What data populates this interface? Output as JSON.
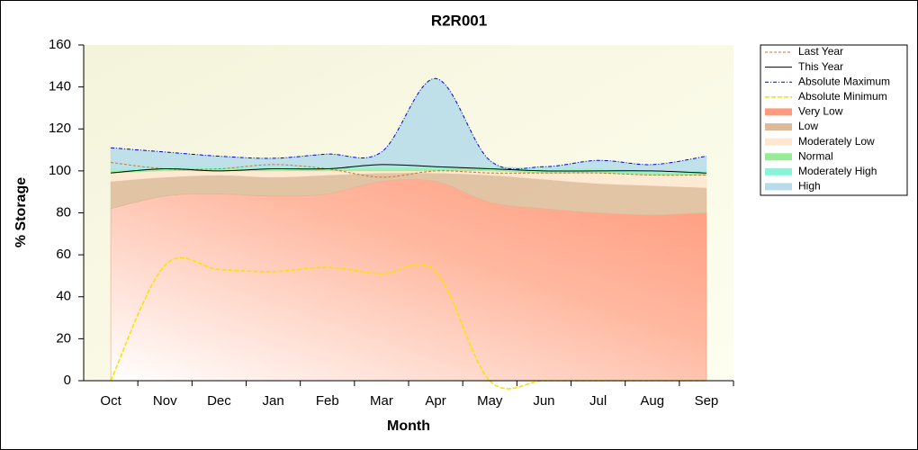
{
  "chart_data": {
    "type": "area",
    "title": "R2R001",
    "x_label": "Month",
    "y_label": "% Storage",
    "categories": [
      "Oct",
      "Nov",
      "Dec",
      "Jan",
      "Feb",
      "Mar",
      "Apr",
      "May",
      "Jun",
      "Jul",
      "Aug",
      "Sep"
    ],
    "ylim": [
      0,
      160
    ],
    "yticks": [
      0,
      20,
      40,
      60,
      80,
      100,
      120,
      140,
      160
    ],
    "legend": "right",
    "series": [
      {
        "name": "Last Year",
        "kind": "line",
        "dash": "3,2",
        "color": "#c07838",
        "values": [
          104,
          101,
          101,
          103,
          101,
          97,
          100,
          99,
          99,
          99,
          98,
          98
        ]
      },
      {
        "name": "This Year",
        "kind": "line",
        "color": "#000000",
        "values": [
          99,
          101,
          100,
          101,
          101,
          103,
          102,
          101,
          100,
          100,
          100,
          99
        ]
      },
      {
        "name": "Absolute Maximum",
        "kind": "line",
        "dash": "4,2,1,2",
        "color": "#0000cc",
        "values": [
          111,
          109,
          107,
          106,
          108,
          109,
          144,
          105,
          102,
          105,
          103,
          107
        ]
      },
      {
        "name": "Absolute Minimum",
        "kind": "line",
        "dash": "5,2",
        "color": "#ffe000",
        "values": [
          0,
          55,
          53,
          52,
          54,
          51,
          52,
          0,
          0,
          0,
          0,
          0
        ]
      },
      {
        "name": "Very Low",
        "kind": "area",
        "color": "#ff9a7c",
        "values": [
          82,
          88,
          89,
          88,
          89,
          95,
          95,
          85,
          82,
          80,
          79,
          80
        ]
      },
      {
        "name": "Low",
        "kind": "area",
        "color": "#ddbb98",
        "values": [
          13,
          9,
          9,
          9,
          9,
          4,
          4,
          13,
          14,
          14,
          14,
          12
        ]
      },
      {
        "name": "Moderately Low",
        "kind": "area",
        "color": "#ffe6cf",
        "values": [
          4,
          3,
          2,
          3,
          2,
          1,
          1,
          2,
          3,
          5,
          5,
          6
        ]
      },
      {
        "name": "Normal",
        "kind": "area",
        "color": "#98ec98",
        "values": [
          1,
          1,
          1,
          1,
          1,
          1,
          1,
          1,
          1,
          1,
          1,
          1
        ]
      },
      {
        "name": "Moderately High",
        "kind": "area",
        "color": "#88f5d8",
        "values": [
          1,
          1,
          1,
          1,
          1,
          1,
          1,
          1,
          1,
          1,
          1,
          1
        ]
      },
      {
        "name": "High",
        "kind": "area",
        "color": "#b6dcea",
        "values": [
          10,
          7,
          5,
          4,
          6,
          7,
          42,
          3,
          1,
          4,
          3,
          7
        ]
      }
    ]
  }
}
